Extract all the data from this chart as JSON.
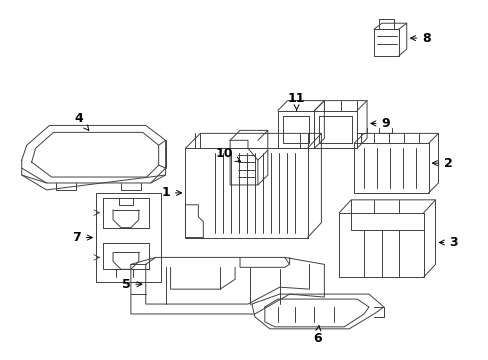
{
  "background_color": "#ffffff",
  "line_color": "#404040",
  "text_color": "#000000",
  "fig_width": 4.89,
  "fig_height": 3.6,
  "dpi": 100,
  "lw": 0.7
}
